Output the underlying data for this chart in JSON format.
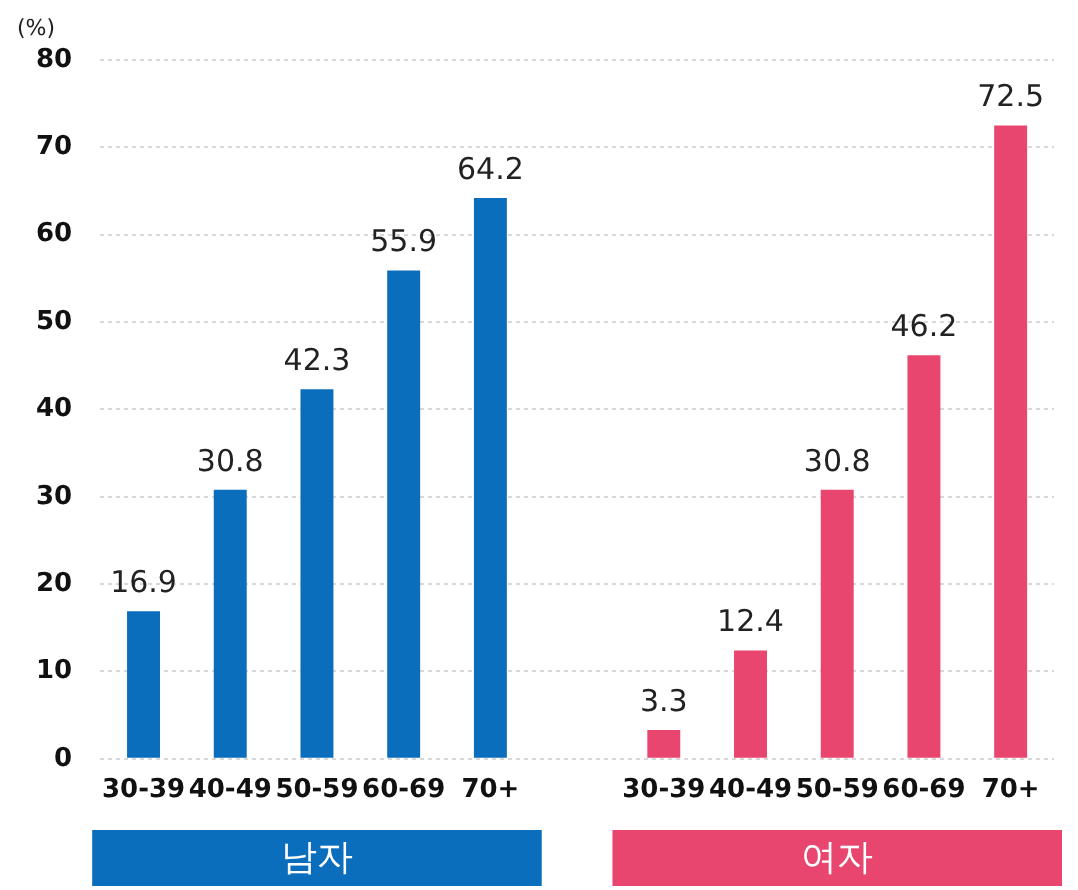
{
  "chart_data": {
    "type": "bar",
    "ylabel": "(%)",
    "categories": [
      "30-39",
      "40-49",
      "50-59",
      "60-69",
      "70+",
      null,
      "30-39",
      "40-49",
      "50-59",
      "60-69",
      "70+"
    ],
    "series": [
      {
        "name": "남자",
        "color": "#0a6ebd",
        "values": [
          16.9,
          30.8,
          42.3,
          55.9,
          64.2,
          null,
          null,
          null,
          null,
          null,
          null
        ]
      },
      {
        "name": "여자",
        "color": "#e8466e",
        "values": [
          null,
          null,
          null,
          null,
          null,
          null,
          3.3,
          12.4,
          30.8,
          46.2,
          72.5
        ]
      }
    ],
    "ylim": [
      0,
      80
    ],
    "yticks": [
      0,
      10,
      20,
      30,
      40,
      50,
      60,
      70,
      80
    ],
    "grid": "y",
    "data_labels": true
  }
}
